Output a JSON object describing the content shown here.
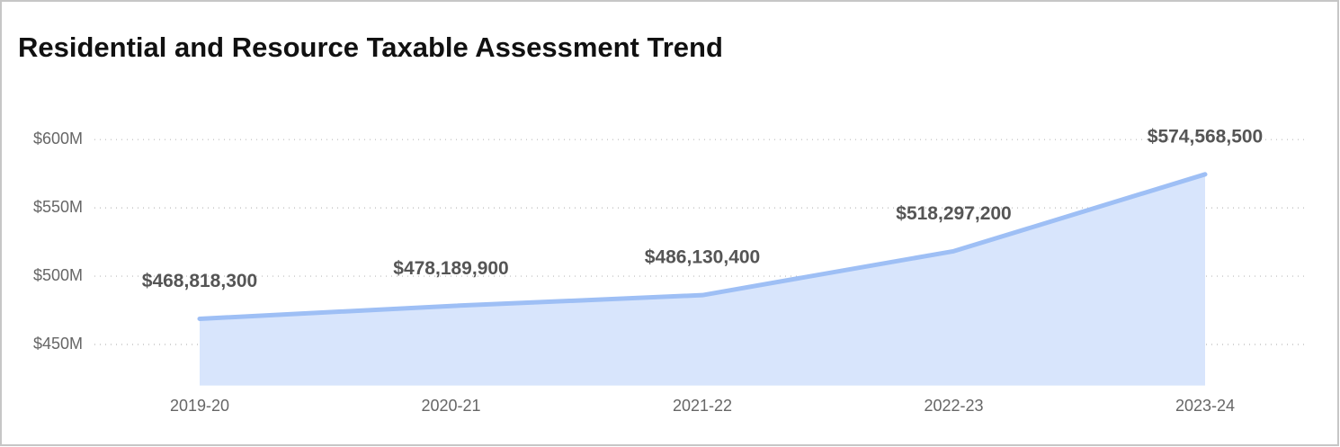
{
  "chart_data": {
    "type": "area",
    "title": "Residential and Resource Taxable Assessment Trend",
    "categories": [
      "2019-20",
      "2020-21",
      "2021-22",
      "2022-23",
      "2023-24"
    ],
    "values": [
      468818300,
      478189900,
      486130400,
      518297200,
      574568500
    ],
    "value_labels": [
      "$468,818,300",
      "$478,189,900",
      "$486,130,400",
      "$518,297,200",
      "$574,568,500"
    ],
    "line_color": "#9ebff5",
    "fill_color": "#d8e5fc",
    "ylim": [
      420000000,
      610000000
    ],
    "yticks": [
      {
        "value": 450000000,
        "label": "$450M"
      },
      {
        "value": 500000000,
        "label": "$500M"
      },
      {
        "value": 550000000,
        "label": "$550M"
      },
      {
        "value": 600000000,
        "label": "$600M"
      }
    ],
    "grid": true
  }
}
